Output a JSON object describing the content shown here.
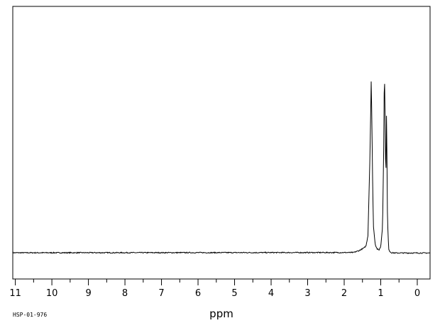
{
  "chart_data": {
    "type": "line",
    "title": "",
    "xlabel": "ppm",
    "ylabel": "",
    "x_reversed": true,
    "xlim": [
      11.07,
      -0.35
    ],
    "ylim": [
      0,
      100
    ],
    "grid": false,
    "x_ticks": [
      "11",
      "10",
      "9",
      "8",
      "7",
      "6",
      "5",
      "4",
      "3",
      "2",
      "1",
      "0"
    ],
    "series": [
      {
        "x": [
          11.07,
          1.75,
          1.6,
          1.45,
          1.4,
          1.35,
          1.3,
          1.28,
          1.26,
          1.24,
          1.22,
          1.2,
          1.15,
          1.1,
          1.05,
          1.0,
          0.95,
          0.92,
          0.9,
          0.88,
          0.86,
          0.84,
          0.82,
          0.8,
          0.78,
          0.75,
          0.7,
          0.6,
          -0.35
        ],
        "y": [
          0.3,
          0.4,
          1.2,
          2.5,
          3.5,
          8,
          40,
          57,
          78,
          55,
          30,
          12,
          4,
          2,
          1.5,
          3,
          12,
          45,
          83,
          60,
          30,
          66,
          20,
          8,
          2,
          0.8,
          0.3,
          0.2,
          0.2
        ]
      }
    ]
  },
  "spectrum_id": "HSP-01-976"
}
